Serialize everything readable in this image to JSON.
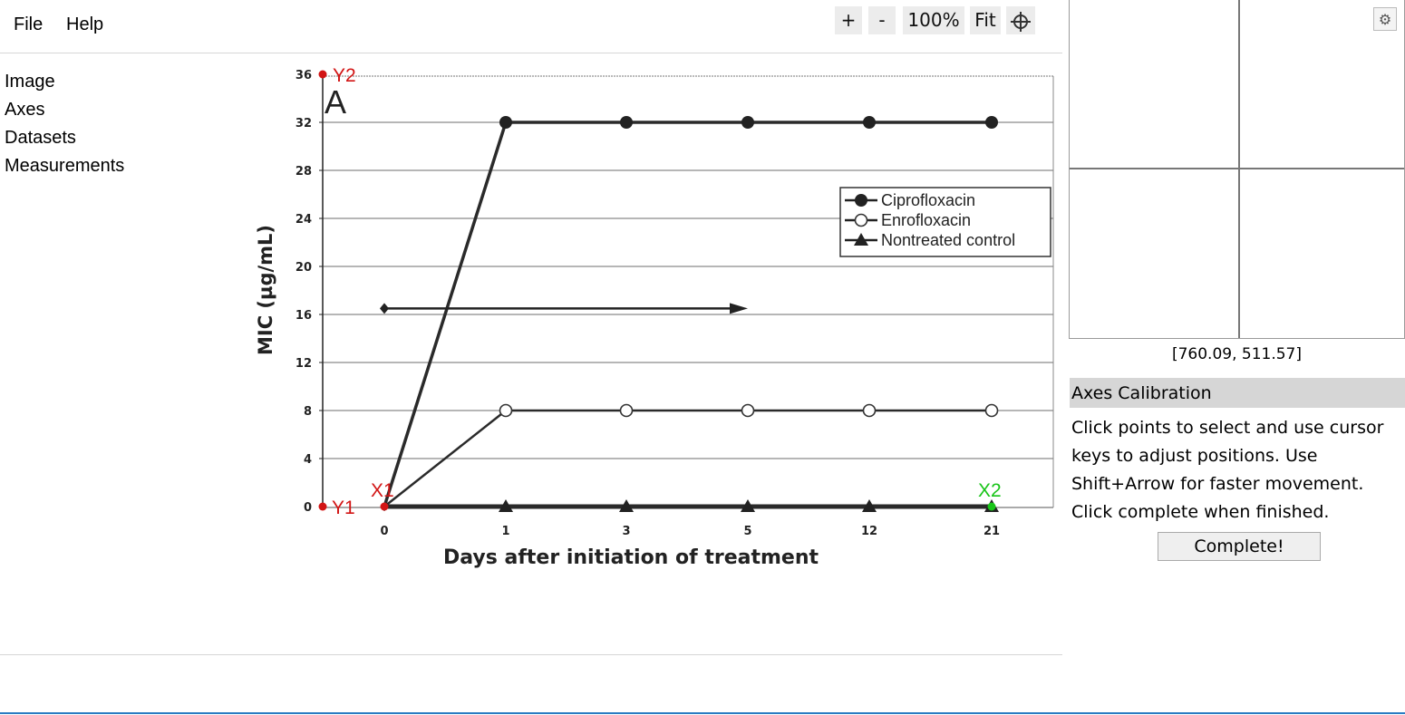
{
  "menu": {
    "file": "File",
    "help": "Help"
  },
  "toolbar": {
    "zoom_in": "+",
    "zoom_out": "-",
    "zoom_level": "100%",
    "fit": "Fit"
  },
  "sidebar": {
    "items": [
      "Image",
      "Axes",
      "Datasets",
      "Measurements"
    ]
  },
  "calibration_points": {
    "y2": "Y2",
    "y1": "Y1",
    "x1": "X1",
    "x2": "X2"
  },
  "colors": {
    "y_marker": "#d21414",
    "x1_marker": "#d21414",
    "x2_marker": "#18c418",
    "accent": "#2a7bc2"
  },
  "right_panel": {
    "coord_readout": "[760.09, 511.57]",
    "section_title": "Axes Calibration",
    "instructions": "Click points to select and use cursor keys to adjust positions. Use Shift+Arrow for faster movement. Click complete when finished.",
    "complete_label": "Complete!",
    "settings_icon": "gear-icon"
  },
  "chart_data": {
    "type": "line",
    "panel_label": "A",
    "xlabel": "Days after initiation of treatment",
    "ylabel": "MIC (µg/mL)",
    "categories": [
      "0",
      "1",
      "3",
      "5",
      "12",
      "21"
    ],
    "yticks": [
      "0",
      "4",
      "8",
      "12",
      "16",
      "20",
      "24",
      "28",
      "32",
      "36"
    ],
    "ylim": [
      0,
      36
    ],
    "grid": true,
    "legend_position": "top-right",
    "series": [
      {
        "name": "Ciprofloxacin",
        "marker": "filled-circle",
        "values": [
          0,
          32,
          32,
          32,
          32,
          32
        ]
      },
      {
        "name": "Enrofloxacin",
        "marker": "open-circle",
        "values": [
          0,
          8,
          8,
          8,
          8,
          8
        ]
      },
      {
        "name": "Nontreated control",
        "marker": "filled-triangle",
        "values": [
          0,
          0,
          0,
          0,
          0,
          0
        ]
      }
    ],
    "annotation_arrow": {
      "y": 16.5,
      "from_category": "0",
      "to_category": "5"
    }
  }
}
